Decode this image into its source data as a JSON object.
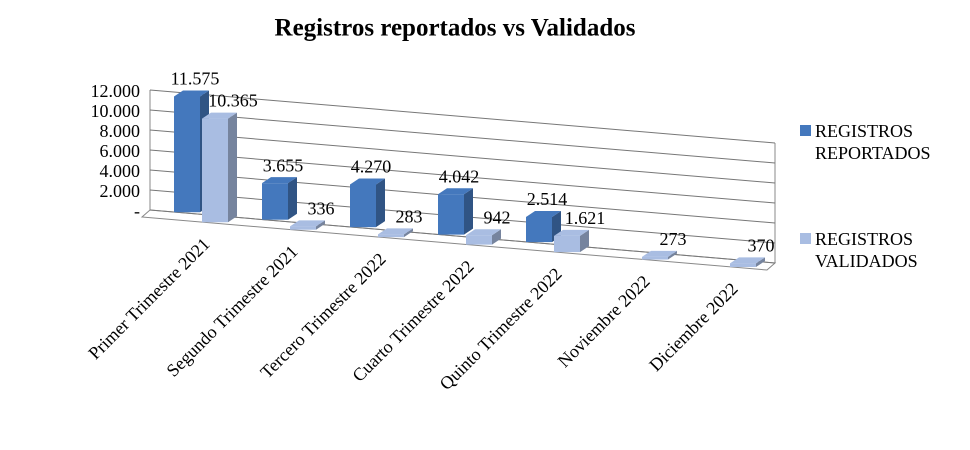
{
  "chart_data": {
    "type": "bar3d",
    "title": "Registros reportados vs Validados",
    "categories": [
      "Primer Trimestre 2021",
      "Segundo Trimestre  2021",
      "Tercero Trimestre 2022",
      "Cuarto Trimestre 2022",
      "Quinto Trimestre 2022",
      "Noviembre 2022",
      "Diciembre 2022"
    ],
    "series": [
      {
        "name": "REGISTROS REPORTADOS",
        "color": "#4478bd",
        "values": [
          11575,
          3655,
          4270,
          4042,
          2514,
          null,
          null
        ],
        "value_labels": [
          "11.575",
          "3.655",
          "4.270",
          "4.042",
          "2.514",
          null,
          null
        ]
      },
      {
        "name": "REGISTROS VALIDADOS",
        "color": "#a9bde2",
        "values": [
          10365,
          336,
          283,
          942,
          1621,
          273,
          370
        ],
        "value_labels": [
          "10.365",
          "336",
          "283",
          "942",
          "1.621",
          "273",
          "370"
        ]
      }
    ],
    "ylim": [
      0,
      12000
    ],
    "yticks": [
      {
        "value": 0,
        "label": "-"
      },
      {
        "value": 2000,
        "label": "2.000"
      },
      {
        "value": 4000,
        "label": "4.000"
      },
      {
        "value": 6000,
        "label": "6.000"
      },
      {
        "value": 8000,
        "label": "8.000"
      },
      {
        "value": 10000,
        "label": "10.000"
      },
      {
        "value": 12000,
        "label": "12.000"
      }
    ],
    "grid": true
  }
}
